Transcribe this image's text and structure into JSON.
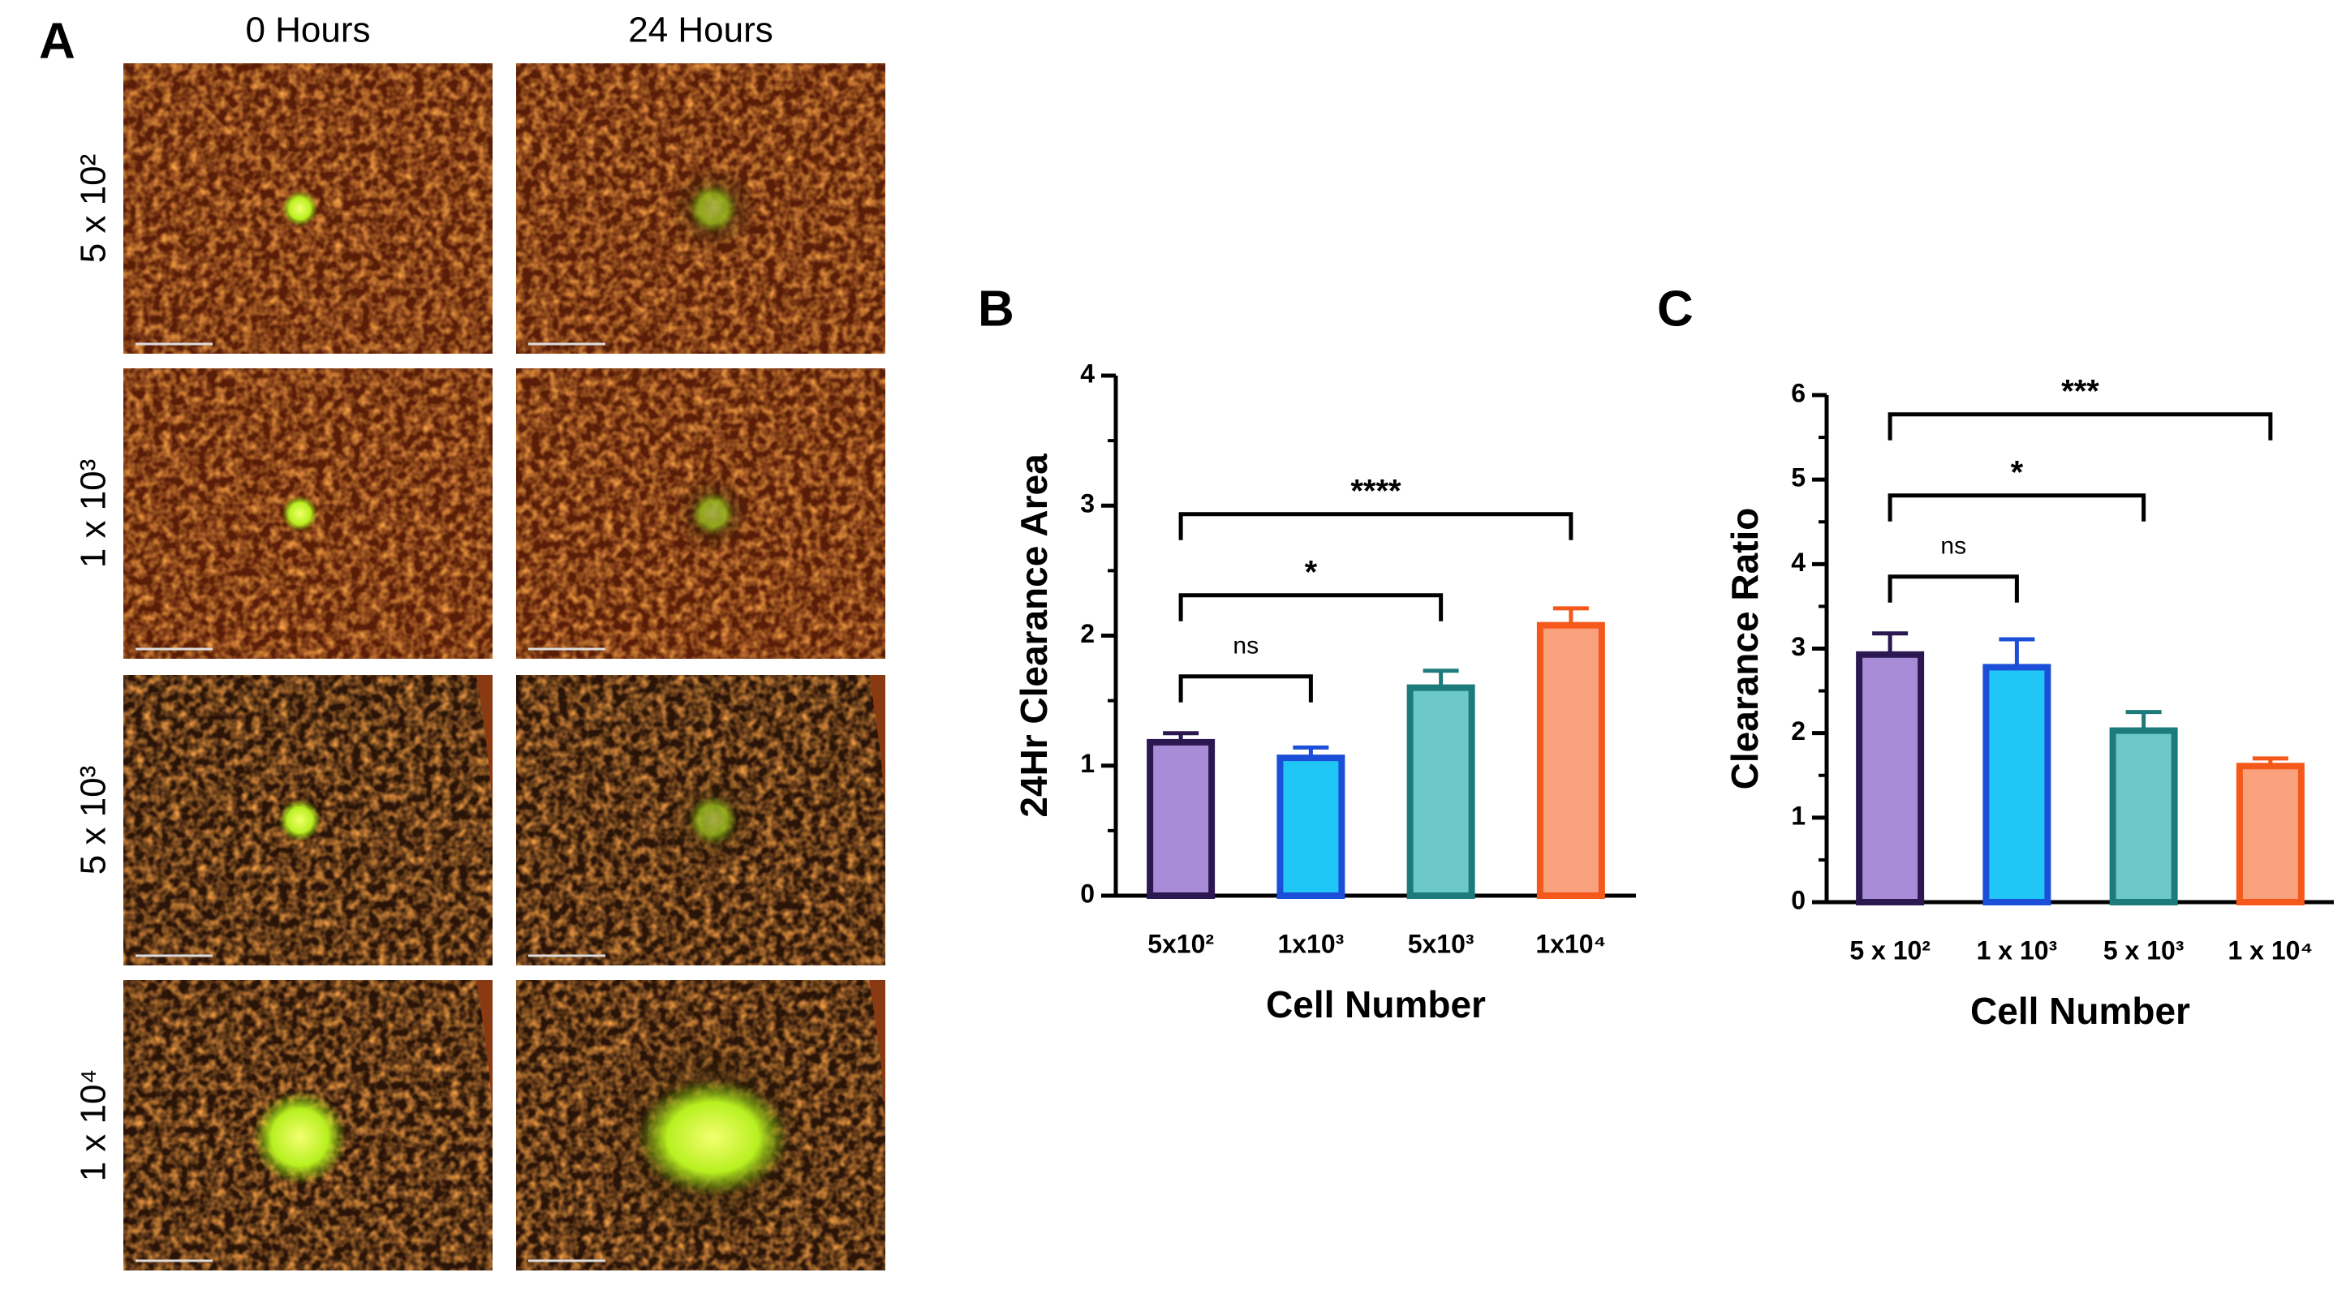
{
  "panel_a": {
    "label": "A",
    "columns": [
      "0 Hours",
      "24 Hours"
    ],
    "rows": [
      "5 x 10²",
      "1 x 10³",
      "5 x 10³",
      "1 x 10⁴"
    ]
  },
  "chart_data": [
    {
      "type": "bar",
      "panel_label": "B",
      "ylabel": "24Hr Clearance Area",
      "xlabel": "Cell Number",
      "categories": [
        "5x10²",
        "1x10³",
        "5x10³",
        "1x10⁴"
      ],
      "values": [
        1.18,
        1.06,
        1.6,
        2.08
      ],
      "errors": [
        0.07,
        0.08,
        0.13,
        0.13
      ],
      "fill_colors": [
        "#a78bd6",
        "#1fc6f6",
        "#6cc8c9",
        "#f9a07c"
      ],
      "edge_colors": [
        "#2b1850",
        "#1c4fd8",
        "#1e7b7c",
        "#f4581a"
      ],
      "ylim": [
        0,
        4
      ],
      "yticks": [
        0,
        1,
        2,
        3,
        4
      ],
      "yminor": [
        0.5,
        1.5,
        2.5,
        3.5
      ],
      "annotations": [
        {
          "from": 0,
          "to": 1,
          "label": "ns"
        },
        {
          "from": 0,
          "to": 2,
          "label": "*"
        },
        {
          "from": 0,
          "to": 3,
          "label": "****"
        }
      ]
    },
    {
      "type": "bar",
      "panel_label": "C",
      "ylabel": "Clearance Ratio",
      "xlabel": "Cell Number",
      "categories": [
        "5 x 10²",
        "1 x 10³",
        "5 x 10³",
        "1 x 10⁴"
      ],
      "values": [
        2.93,
        2.78,
        2.03,
        1.61
      ],
      "errors": [
        0.25,
        0.33,
        0.22,
        0.09
      ],
      "fill_colors": [
        "#a78bd6",
        "#1fc6f6",
        "#6cc8c9",
        "#f9a07c"
      ],
      "edge_colors": [
        "#2b1850",
        "#1c4fd8",
        "#1e7b7c",
        "#f4581a"
      ],
      "ylim": [
        0,
        6
      ],
      "yticks": [
        0,
        1,
        2,
        3,
        4,
        5,
        6
      ],
      "yminor": [
        0.5,
        1.5,
        2.5,
        3.5,
        4.5,
        5.5
      ],
      "annotations": [
        {
          "from": 0,
          "to": 1,
          "label": "ns"
        },
        {
          "from": 0,
          "to": 2,
          "label": "*"
        },
        {
          "from": 0,
          "to": 3,
          "label": "***"
        }
      ]
    }
  ]
}
